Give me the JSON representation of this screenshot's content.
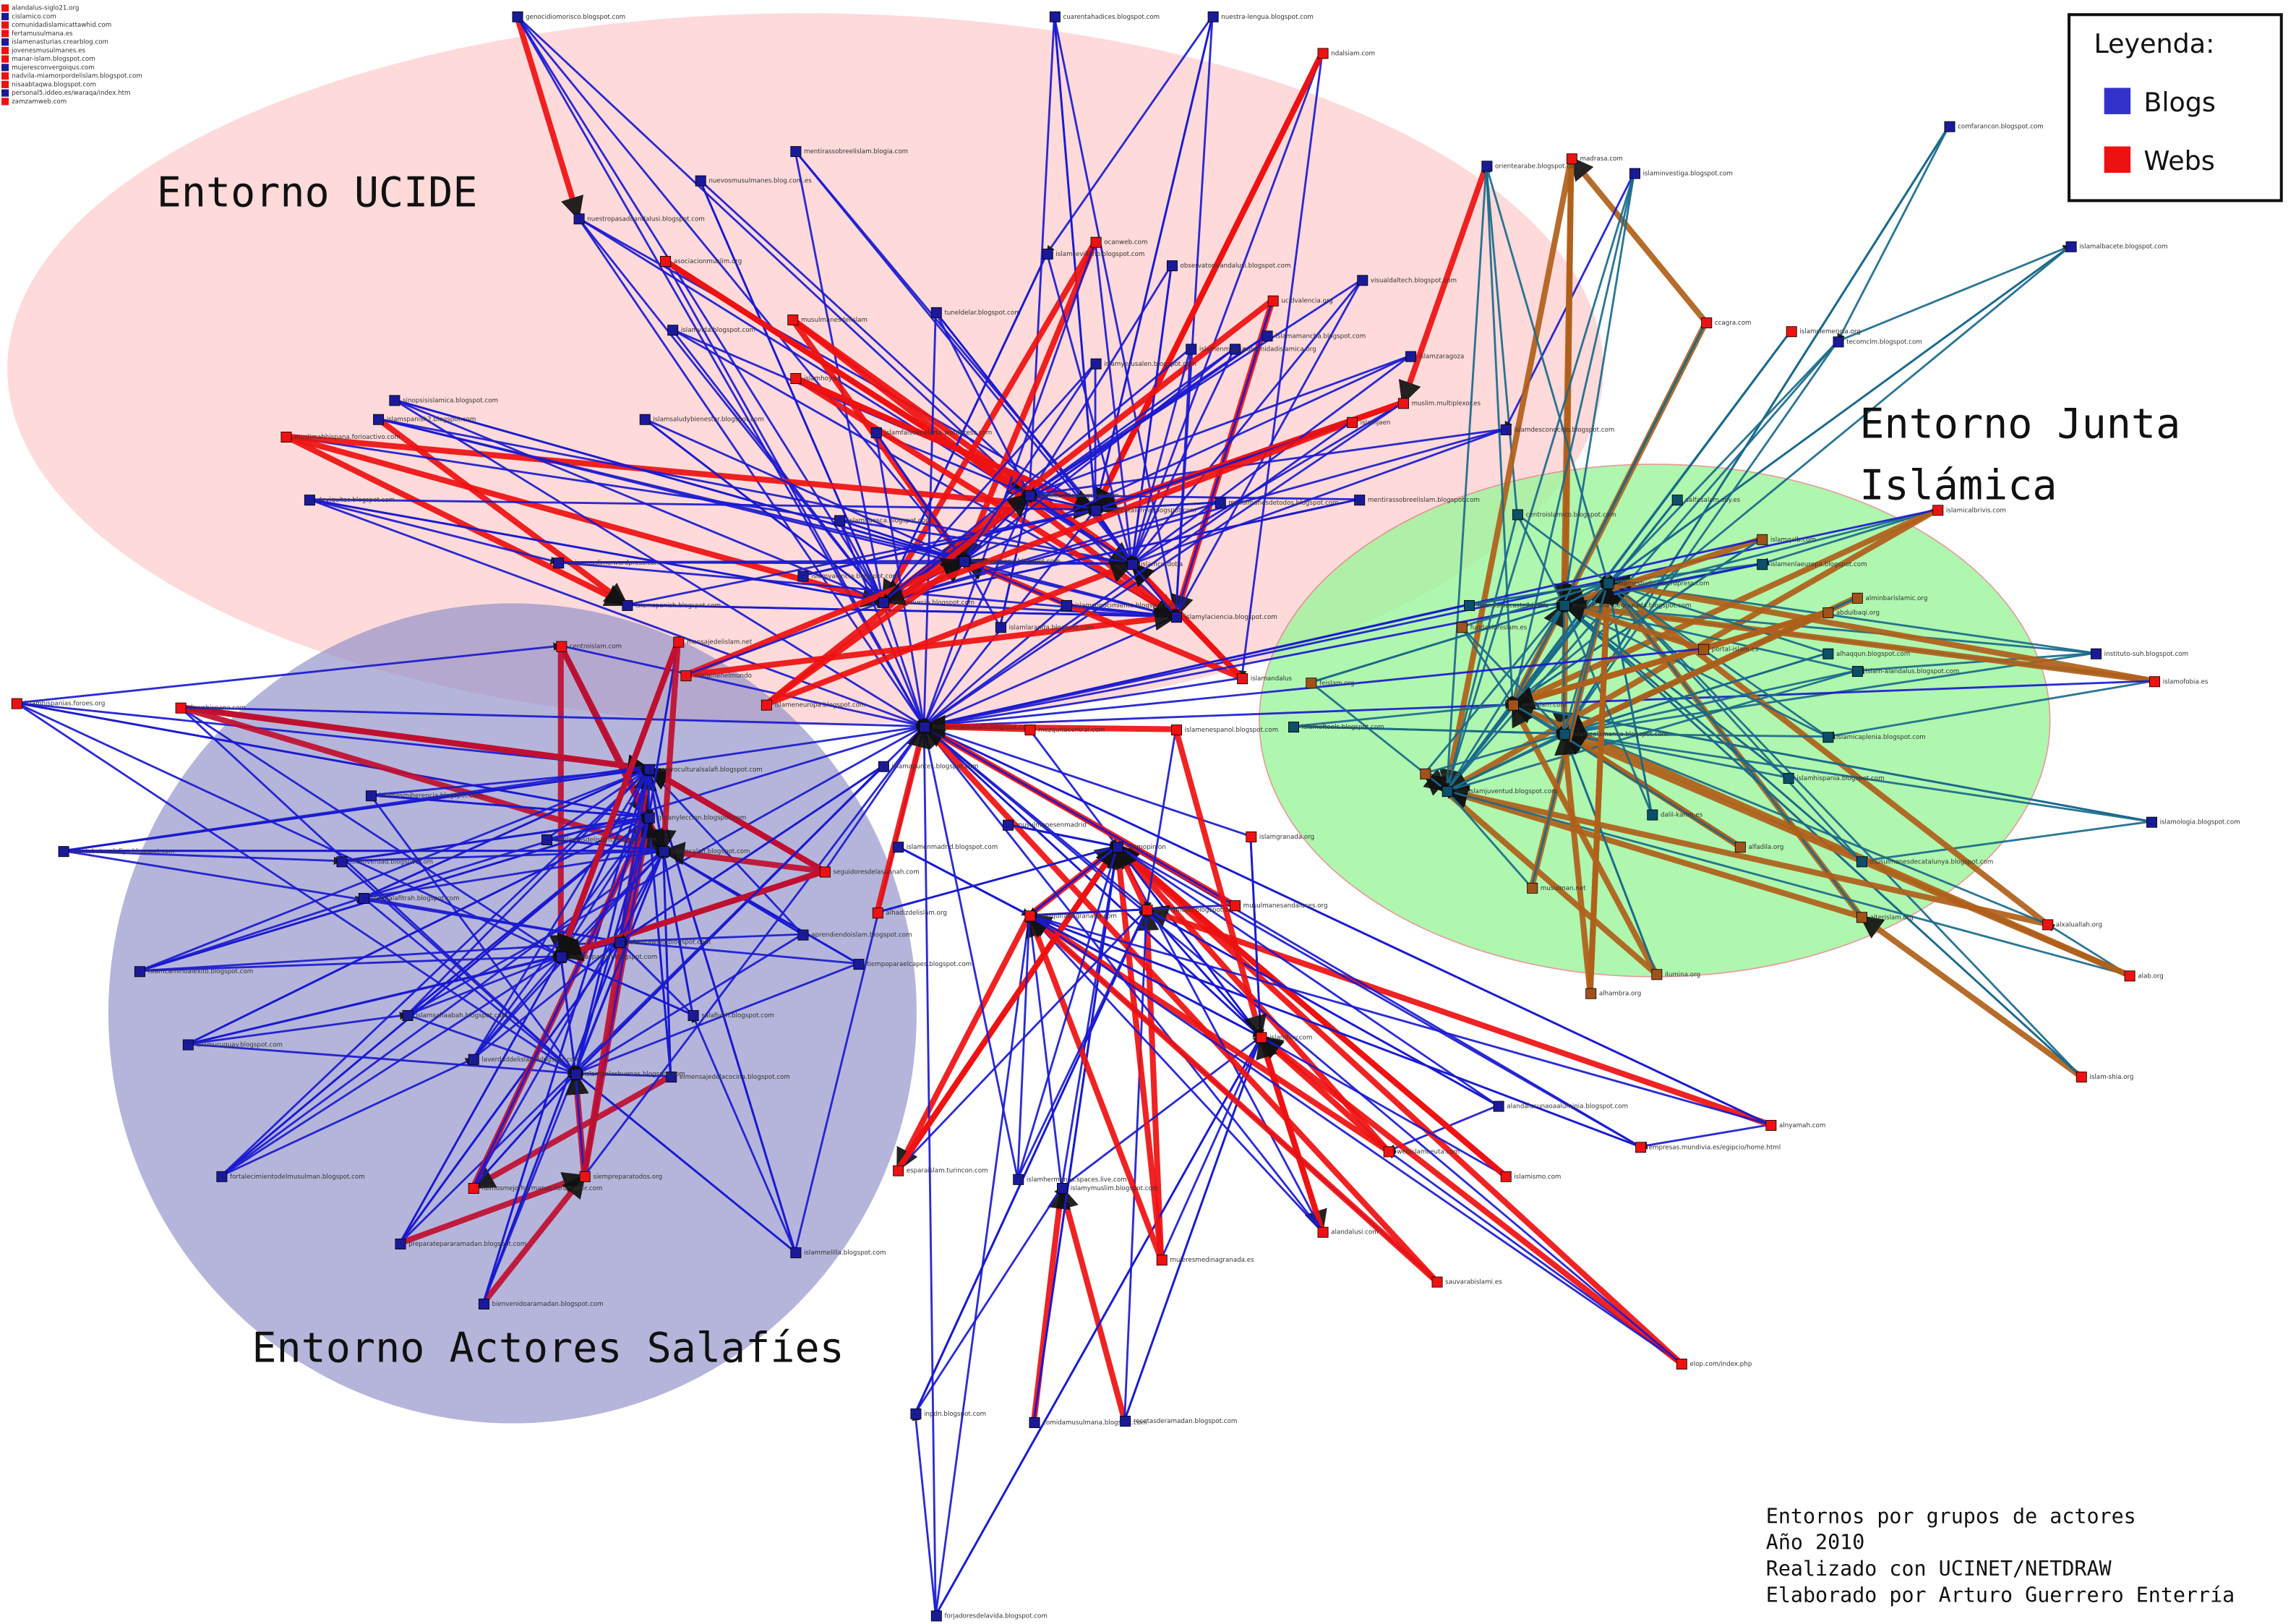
{
  "regions": [
    {
      "lines": [
        "Entorno UCIDE"
      ]
    },
    {
      "lines": [
        "Entorno Junta",
        "Islámica"
      ]
    },
    {
      "lines": [
        "Entorno Actores Salafíes"
      ]
    }
  ],
  "legend": {
    "title": "Leyenda:",
    "items": [
      "Blogs",
      "Webs"
    ]
  },
  "notes": [
    "Entornos por grupos de actores",
    "Año 2010",
    "Realizado con UCINET/NETDRAW",
    "Elaborado por Arturo Guerrero Enterría"
  ],
  "isolates": [
    "alandalus-siglo21.org",
    "cislamico.com",
    "comunidadislamicattawhid.com",
    "fertamusulmana.es",
    "islamenasturias.crearblog.com",
    "jovenesmusulmanes.es",
    "manar-islam.blogspot.com",
    "mujeresconvergoiqus.com",
    "nadvila-miamorpordelislam.blogspot.com",
    "nisaabtaqwa.blogspot.com",
    "personal5.iddeo.es/waraqa/index.htm",
    "zamzamweb.com"
  ],
  "nodes": [
    "genocidiomorisco.blogspot.com",
    "cuarentahadices.blogspot.com",
    "nuestra-lengua.blogspot.com",
    "ndalsiam.com",
    "nuestropasadoandalusi.blogspot.com",
    "mentirassobreelislam.blogia.com",
    "nuevosmusulmanes.blog.com.es",
    "asociacionmuslim.org",
    "islamvida.blogspot.com",
    "musulmanesdelislam",
    "ocanweb.com",
    "observatorioandalusi.blogspot.com",
    "tuneldelar.blogspot.com",
    "islamsevillano.blogspot.com",
    "ucidvalencia.org",
    "visualdaltech.blogspot.com",
    "muslimahhispana.forioactivo.com",
    "sinopsisislamica.blogspot.com",
    "islamspanish2.blogspot.com",
    "islamsaludybienestar.blogspot.com",
    "deviquitas.blogspot.com",
    "islamfalsoenelarte.wordpress.com",
    "islamhoy.es",
    "madrasa.com",
    "orientearabe.blogspot.com",
    "islaminvestiga.blogspot.com",
    "comfarancon.blogspot.com",
    "islamalbacete.blogspot.com",
    "ccagra.com",
    "islamclemencia.org",
    "tecomclm.blogspot.com",
    "islamdesconocido.blogspot.com",
    "muslim.multiplexor.es",
    "mentirassobreelislam.blogspot.com",
    "salfasalam.soy.es",
    "islamicalbrivis.com",
    "unionmuslima.wordpress.com",
    "islamspanish.blogspot.com",
    "centroislam.com",
    "islamhispanias.foroes.org",
    "dawahispana.com",
    "instituto-suh.blogspot.com",
    "islamofobia.es",
    "hablemosdeislam.blogspot.com",
    "islamyespana.blogspot.com",
    "islamlaranda.blogspot.com",
    "islamylaciencia.blogspot.com",
    "islamandalus",
    "musulmanesdetodos.blogspot.com",
    "webislam.com",
    "inpdn.blogspot.com",
    "comidamusulmana.blogspot.com",
    "recetasderamadan.blogspot.com",
    "forjadoresdelavida.blogspot.com",
    "islamymuslim.blogspot.com",
    "mujeresmedinagranada.es",
    "mezquitadegranada.com",
    "webislamceuta.com",
    "alandalusi.com",
    "sauvarabislami.es",
    "elop.com/index.php",
    "islamismo.com",
    "islamhoy.com",
    "alnyamah.com",
    "empresas.mundivia.es/egipcio/home.html",
    "alterislam.org",
    "islam-shia.org",
    "alxaluallah.org",
    "islamologia.blogspot.com",
    "alab.org",
    "maktabatusalafiya.blogspot.com",
    "islamcaminoalexito.blogspot.com",
    "islamuruguay.blogspot.com",
    "fortalecimientodelmusulman.blogspot.com",
    "preparatepararamadan.blogspot.com",
    "bienvenidoaramadan.blogspot.com",
    "islammelilla.blogspot.com",
    "esparaislam.turincon.com",
    "islamhermanas.spaces.live.com",
    "elmensajedelacocina.blogspot.com",
    "tiempoparaelcapes.blogspot.com",
    "fuimosmejorhermanas.forumaetir.com",
    "siempreparatodos.org",
    "islamgranada.org",
    "islamhispania.blogspot.com",
    "musulmanesdecatalunya.blogspot.com",
    "islamicaplenia.blogspot.com",
    "alhaqqun.blogspot.com",
    "islam-alandalus.blogspot.com",
    "islamenlaeuropa.blogspot.com",
    "alminbarislamic.org",
    "abdulbaqi.org",
    "islamqalb.com",
    "alfadila.org",
    "dalil-karim.es",
    "musulman.net",
    "ilumina.org",
    "alhambra.org",
    "centroislamico.blogspot.com",
    "islamsalamanca.blogspot.com",
    "musulmanesdegranada.blogspot.com",
    "islamestudios.wordpress.com",
    "webislamjuventud.blogspot.com",
    "fundacionislam.es",
    "portal-islam.es",
    "alnoor.es",
    "islamoftools.blogspot.com",
    "alandalusunaoaaluminia.blogspot.com",
    "feislam.org",
    "islamismocastelldefels",
    "centroculturalsalafi.blogspot.com",
    "hablemosdelislam.blogspot.com",
    "islamesmiherencia.blogspot.com",
    "islamalafitrah.blogspot.com",
    "islamsahaabah.blogspot.com",
    "laverdaddelislam.blogspot.com",
    "islamenlasbuenas.blogspot.com",
    "sunnaspanish.blogspot.com",
    "islamsalafi.blogspot.com",
    "aprendiendoislam.blogspot.com",
    "salafiyah.blogspot.com",
    "islamtawhid.blogspot.com",
    "quranyleccion.blogspot.com",
    "islamverdad.blogspot.com",
    "seguidoresdelasunnah.com",
    "mensajedelislam.net",
    "islamapuntes.blogspot.com",
    "islamenmadrid.blogspot.com",
    "alhadizdelislam.org",
    "musulmanesenmadrid",
    "mezquitacentral.com",
    "islamymujer.blogspot.com",
    "musulmanesandaluces.org",
    "islamopinion",
    "islamenespanol.blogspot.com",
    "islamconocimiento.blogspot.com",
    "comunidadislamica.org",
    "islamamancha.blogspot.com",
    "islamtoledo.blogspot.com",
    "islamcatalunya.blogspot.com",
    "islamcordoba",
    "islamhuesca.blogspot.com",
    "islamvalencia.blogspot.com",
    "islammurcia.blogspot.com",
    "islameneuropa.blogspot.com",
    "elislamenelmundo",
    "islamyerusalen.blogspot.com",
    "islamzaragoza",
    "islamjaen",
    "islamenmurcia"
  ]
}
